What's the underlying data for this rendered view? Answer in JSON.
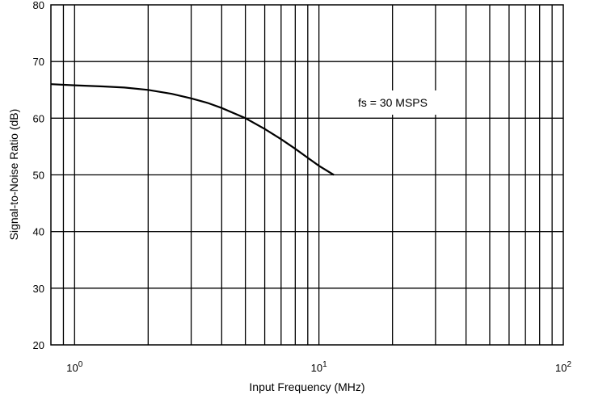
{
  "chart_data": {
    "type": "line",
    "xlabel": "Input Frequency (MHz)",
    "ylabel": "Signal-to-Noise Ratio (dB)",
    "xscale": "log",
    "xlim": [
      0.8,
      100
    ],
    "ylim": [
      20,
      80
    ],
    "grid": true,
    "x_ticks": [
      {
        "value": 1,
        "base": "10",
        "exp": "0"
      },
      {
        "value": 10,
        "base": "10",
        "exp": "1"
      },
      {
        "value": 100,
        "base": "10",
        "exp": "2"
      }
    ],
    "y_ticks": [
      20,
      30,
      40,
      50,
      60,
      70,
      80
    ],
    "annotation": "fs = 30 MSPS",
    "series": [
      {
        "x": [
          0.8,
          1.0,
          1.3,
          1.6,
          2.0,
          2.5,
          3.0,
          3.5,
          4.0,
          5.0,
          6.0,
          7.0,
          8.0,
          9.0,
          10.0,
          11.5
        ],
        "y": [
          66.0,
          65.8,
          65.6,
          65.4,
          65.0,
          64.3,
          63.5,
          62.7,
          61.8,
          60.0,
          58.1,
          56.3,
          54.6,
          53.0,
          51.6,
          50.0
        ]
      }
    ]
  }
}
